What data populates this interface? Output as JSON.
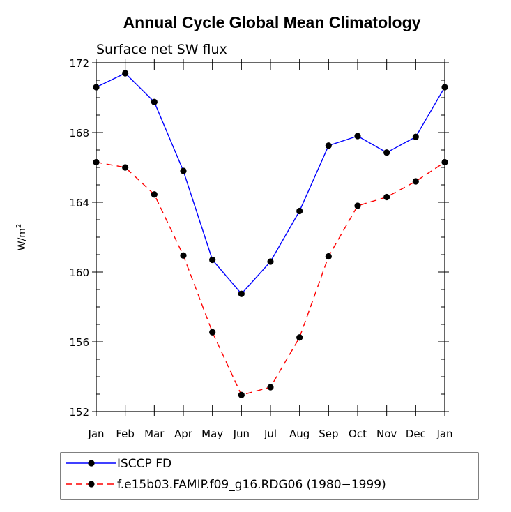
{
  "chart_data": {
    "type": "line",
    "title": "Annual Cycle Global Mean Climatology",
    "subtitle": "Surface net SW flux",
    "ylabel_base": "W/m",
    "ylabel_sup": "2",
    "categories": [
      "Jan",
      "Feb",
      "Mar",
      "Apr",
      "May",
      "Jun",
      "Jul",
      "Aug",
      "Sep",
      "Oct",
      "Nov",
      "Dec",
      "Jan"
    ],
    "yticks": [
      152,
      156,
      160,
      164,
      168,
      172
    ],
    "ylim": [
      152,
      172
    ],
    "grid": false,
    "legend_position": "bottom",
    "series": [
      {
        "name": "ISCCP FD",
        "color": "#0000ff",
        "dash": "solid",
        "values": [
          170.6,
          171.4,
          169.75,
          165.8,
          160.7,
          158.75,
          160.6,
          163.5,
          167.25,
          167.8,
          166.85,
          167.75,
          170.6
        ]
      },
      {
        "name": "f.e15b03.FAMIP.f09_g16.RDG06 (1980−1999)",
        "color": "#ff0000",
        "dash": "dashed",
        "values": [
          166.3,
          166.0,
          164.45,
          160.95,
          156.55,
          152.95,
          153.4,
          156.25,
          160.9,
          163.8,
          164.3,
          165.2,
          166.3
        ]
      }
    ]
  }
}
